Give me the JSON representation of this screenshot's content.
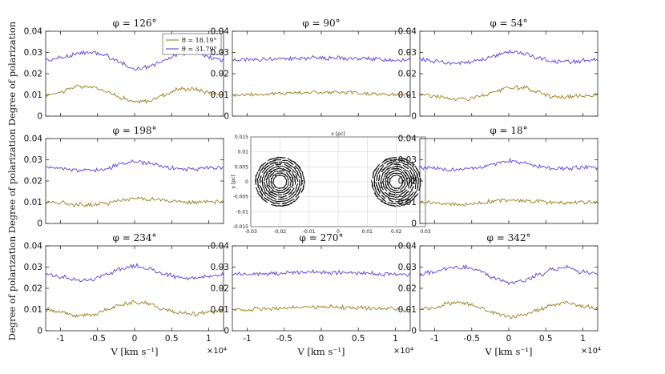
{
  "figure": {
    "ylabel": "Degree of polarization",
    "xlabel": "V [km s⁻¹]",
    "x_exponent": "×10⁴",
    "xticks": [
      "-1",
      "-0.5",
      "0",
      "0.5",
      "1"
    ],
    "yticks": [
      "0",
      "0.01",
      "0.02",
      "0.03",
      "0.04"
    ],
    "legend": [
      {
        "label": "θ = 18.19°",
        "color": "#9b7d1c"
      },
      {
        "label": "θ = 31.79°",
        "color": "#5b3fd6"
      }
    ]
  },
  "center_map": {
    "xlabel": "x [pc]",
    "ylabel": "y [pc]",
    "xticks": [
      "-0.03",
      "-0.02",
      "-0.01",
      "0",
      "0.01",
      "0.02",
      "0.03"
    ],
    "yticks": [
      "0.015",
      "0.01",
      "0.005",
      "0",
      "-0.005",
      "-0.01",
      "-0.015"
    ],
    "xlim": [
      -0.03,
      0.03
    ],
    "ylim": [
      -0.015,
      0.015
    ],
    "blobs": [
      {
        "cx": -0.02,
        "cy": 0.0,
        "r": 0.0085
      },
      {
        "cx": 0.02,
        "cy": 0.0,
        "r": 0.0085
      }
    ]
  },
  "chart_data": [
    {
      "type": "line",
      "title": "φ = 126°",
      "xlim": [
        -12000,
        12000
      ],
      "ylim": [
        0,
        0.04
      ],
      "x": [
        -12000,
        -10000,
        -8000,
        -6000,
        -4000,
        -2000,
        0,
        2000,
        4000,
        6000,
        8000,
        10000,
        12000
      ],
      "series": [
        {
          "name": "θ = 18.19°",
          "values": [
            0.01,
            0.0115,
            0.0138,
            0.0138,
            0.0122,
            0.009,
            0.0065,
            0.0072,
            0.0102,
            0.0128,
            0.0128,
            0.0112,
            0.0102
          ]
        },
        {
          "name": "θ = 31.79°",
          "values": [
            0.0265,
            0.0275,
            0.0292,
            0.0302,
            0.0287,
            0.0252,
            0.0222,
            0.0232,
            0.0262,
            0.0292,
            0.0302,
            0.0277,
            0.0265
          ]
        }
      ]
    },
    {
      "type": "line",
      "title": "φ = 90°",
      "xlim": [
        -12000,
        12000
      ],
      "ylim": [
        0,
        0.04
      ],
      "x": [
        -12000,
        -10000,
        -8000,
        -6000,
        -4000,
        -2000,
        0,
        2000,
        4000,
        6000,
        8000,
        10000,
        12000
      ],
      "series": [
        {
          "name": "θ = 18.19°",
          "values": [
            0.01,
            0.0102,
            0.0103,
            0.0106,
            0.011,
            0.0112,
            0.0112,
            0.0112,
            0.011,
            0.0106,
            0.0104,
            0.0102,
            0.0101
          ]
        },
        {
          "name": "θ = 31.79°",
          "values": [
            0.0265,
            0.0267,
            0.0268,
            0.027,
            0.0273,
            0.0274,
            0.0275,
            0.0274,
            0.0272,
            0.027,
            0.0268,
            0.0266,
            0.0265
          ]
        }
      ]
    },
    {
      "type": "line",
      "title": "φ = 54°",
      "xlim": [
        -12000,
        12000
      ],
      "ylim": [
        0,
        0.04
      ],
      "x": [
        -12000,
        -10000,
        -8000,
        -6000,
        -4000,
        -2000,
        0,
        2000,
        4000,
        6000,
        8000,
        10000,
        12000
      ],
      "series": [
        {
          "name": "θ = 18.19°",
          "values": [
            0.0105,
            0.0095,
            0.0082,
            0.0082,
            0.0092,
            0.0112,
            0.0135,
            0.0132,
            0.0112,
            0.0092,
            0.009,
            0.0098,
            0.0103
          ]
        },
        {
          "name": "θ = 31.79°",
          "values": [
            0.0265,
            0.0258,
            0.025,
            0.025,
            0.0262,
            0.0285,
            0.0302,
            0.0295,
            0.0272,
            0.0258,
            0.0255,
            0.0262,
            0.0265
          ]
        }
      ]
    },
    {
      "type": "line",
      "title": "φ = 198°",
      "xlim": [
        -12000,
        12000
      ],
      "ylim": [
        0,
        0.04
      ],
      "x": [
        -12000,
        -10000,
        -8000,
        -6000,
        -4000,
        -2000,
        0,
        2000,
        4000,
        6000,
        8000,
        10000,
        12000
      ],
      "series": [
        {
          "name": "θ = 18.19°",
          "values": [
            0.0102,
            0.0098,
            0.009,
            0.0088,
            0.0095,
            0.0108,
            0.0118,
            0.0115,
            0.0108,
            0.0102,
            0.01,
            0.01,
            0.01
          ]
        },
        {
          "name": "θ = 31.79°",
          "values": [
            0.0263,
            0.026,
            0.0252,
            0.025,
            0.0258,
            0.0278,
            0.0295,
            0.0282,
            0.0265,
            0.0258,
            0.0258,
            0.026,
            0.0262
          ]
        }
      ]
    },
    {
      "type": "scatter",
      "title": "",
      "xlabel": "x [pc]",
      "ylabel": "y [pc]",
      "xlim": [
        -0.03,
        0.03
      ],
      "ylim": [
        -0.015,
        0.015
      ],
      "series": [
        {
          "name": "polarization vectors",
          "x": [
            -0.02,
            0.02
          ],
          "y": [
            0.0,
            0.0
          ]
        }
      ]
    },
    {
      "type": "line",
      "title": "φ = 18°",
      "xlim": [
        -12000,
        12000
      ],
      "ylim": [
        0,
        0.04
      ],
      "x": [
        -12000,
        -10000,
        -8000,
        -6000,
        -4000,
        -2000,
        0,
        2000,
        4000,
        6000,
        8000,
        10000,
        12000
      ],
      "series": [
        {
          "name": "θ = 18.19°",
          "values": [
            0.0102,
            0.0098,
            0.0092,
            0.009,
            0.0095,
            0.0105,
            0.0112,
            0.011,
            0.0102,
            0.0098,
            0.0098,
            0.01,
            0.0101
          ]
        },
        {
          "name": "θ = 31.79°",
          "values": [
            0.0264,
            0.026,
            0.0255,
            0.0255,
            0.0262,
            0.028,
            0.0295,
            0.0285,
            0.0268,
            0.026,
            0.026,
            0.0262,
            0.0264
          ]
        }
      ]
    },
    {
      "type": "line",
      "title": "φ = 234°",
      "xlim": [
        -12000,
        12000
      ],
      "ylim": [
        0,
        0.04
      ],
      "x": [
        -12000,
        -10000,
        -8000,
        -6000,
        -4000,
        -2000,
        0,
        2000,
        4000,
        6000,
        8000,
        10000,
        12000
      ],
      "series": [
        {
          "name": "θ = 18.19°",
          "values": [
            0.01,
            0.0085,
            0.0072,
            0.0075,
            0.0095,
            0.0122,
            0.0135,
            0.0128,
            0.0102,
            0.0082,
            0.0078,
            0.0088,
            0.0098
          ]
        },
        {
          "name": "θ = 31.79°",
          "values": [
            0.0265,
            0.0255,
            0.024,
            0.024,
            0.0262,
            0.0292,
            0.0305,
            0.0292,
            0.0268,
            0.025,
            0.0248,
            0.0258,
            0.0265
          ]
        }
      ]
    },
    {
      "type": "line",
      "title": "φ = 270°",
      "xlim": [
        -12000,
        12000
      ],
      "ylim": [
        0,
        0.04
      ],
      "x": [
        -12000,
        -10000,
        -8000,
        -6000,
        -4000,
        -2000,
        0,
        2000,
        4000,
        6000,
        8000,
        10000,
        12000
      ],
      "series": [
        {
          "name": "θ = 18.19°",
          "values": [
            0.01,
            0.0102,
            0.0104,
            0.0107,
            0.011,
            0.0112,
            0.0112,
            0.0111,
            0.0109,
            0.0106,
            0.0104,
            0.0102,
            0.01
          ]
        },
        {
          "name": "θ = 31.79°",
          "values": [
            0.0265,
            0.0266,
            0.0268,
            0.0271,
            0.0274,
            0.0276,
            0.0276,
            0.0275,
            0.0273,
            0.027,
            0.0268,
            0.0266,
            0.0265
          ]
        }
      ]
    },
    {
      "type": "line",
      "title": "φ = 342°",
      "xlim": [
        -12000,
        12000
      ],
      "ylim": [
        0,
        0.04
      ],
      "x": [
        -12000,
        -10000,
        -8000,
        -6000,
        -4000,
        -2000,
        0,
        2000,
        4000,
        6000,
        8000,
        10000,
        12000
      ],
      "series": [
        {
          "name": "θ = 18.19°",
          "values": [
            0.01,
            0.0112,
            0.013,
            0.013,
            0.0112,
            0.0085,
            0.0065,
            0.0072,
            0.0098,
            0.0125,
            0.0132,
            0.0115,
            0.0102
          ]
        },
        {
          "name": "θ = 31.79°",
          "values": [
            0.0265,
            0.0278,
            0.0296,
            0.03,
            0.0282,
            0.025,
            0.0225,
            0.0235,
            0.0262,
            0.029,
            0.0298,
            0.0278,
            0.0265
          ]
        }
      ]
    }
  ]
}
